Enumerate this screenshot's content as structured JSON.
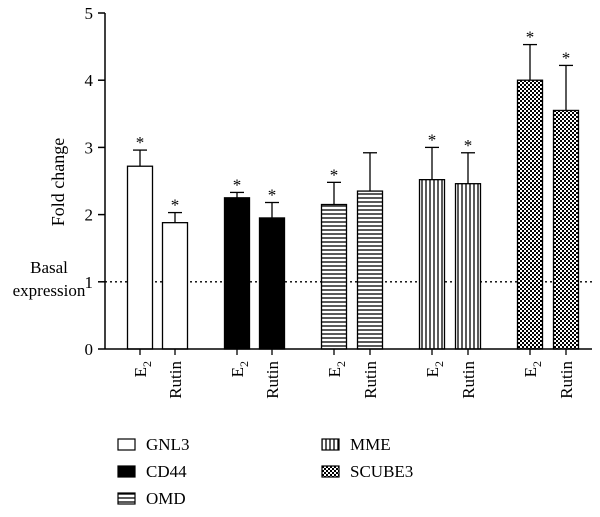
{
  "chart_data": {
    "type": "bar",
    "xlabel": "",
    "ylabel": "Fold change",
    "ylim": [
      0,
      5
    ],
    "yticks": [
      "0",
      "1",
      "2",
      "3",
      "4",
      "5"
    ],
    "basal": {
      "value": 1,
      "line1": "Basal",
      "line2": "expression"
    },
    "significance_marker": "*",
    "groups": [
      {
        "name": "GNL3",
        "fill": "white",
        "bars": [
          {
            "treatment": "E2",
            "value": 2.72,
            "error": 0.24,
            "significant": true
          },
          {
            "treatment": "Rutin",
            "value": 1.88,
            "error": 0.15,
            "significant": true
          }
        ]
      },
      {
        "name": "CD44",
        "fill": "black",
        "bars": [
          {
            "treatment": "E2",
            "value": 2.25,
            "error": 0.08,
            "significant": true
          },
          {
            "treatment": "Rutin",
            "value": 1.95,
            "error": 0.23,
            "significant": true
          }
        ]
      },
      {
        "name": "OMD",
        "fill": "hstripes",
        "bars": [
          {
            "treatment": "E2",
            "value": 2.15,
            "error": 0.33,
            "significant": true
          },
          {
            "treatment": "Rutin",
            "value": 2.35,
            "error": 0.57,
            "significant": false
          }
        ]
      },
      {
        "name": "MME",
        "fill": "vstripes",
        "bars": [
          {
            "treatment": "E2",
            "value": 2.52,
            "error": 0.48,
            "significant": true
          },
          {
            "treatment": "Rutin",
            "value": 2.46,
            "error": 0.46,
            "significant": true
          }
        ]
      },
      {
        "name": "SCUBE3",
        "fill": "checker",
        "bars": [
          {
            "treatment": "E2",
            "value": 4.0,
            "error": 0.53,
            "significant": true
          },
          {
            "treatment": "Rutin",
            "value": 3.55,
            "error": 0.67,
            "significant": true
          }
        ]
      }
    ],
    "tick_labels": {
      "E2": {
        "base": "E",
        "sub": "2"
      },
      "Rutin": {
        "base": "Rutin",
        "sub": ""
      }
    }
  }
}
